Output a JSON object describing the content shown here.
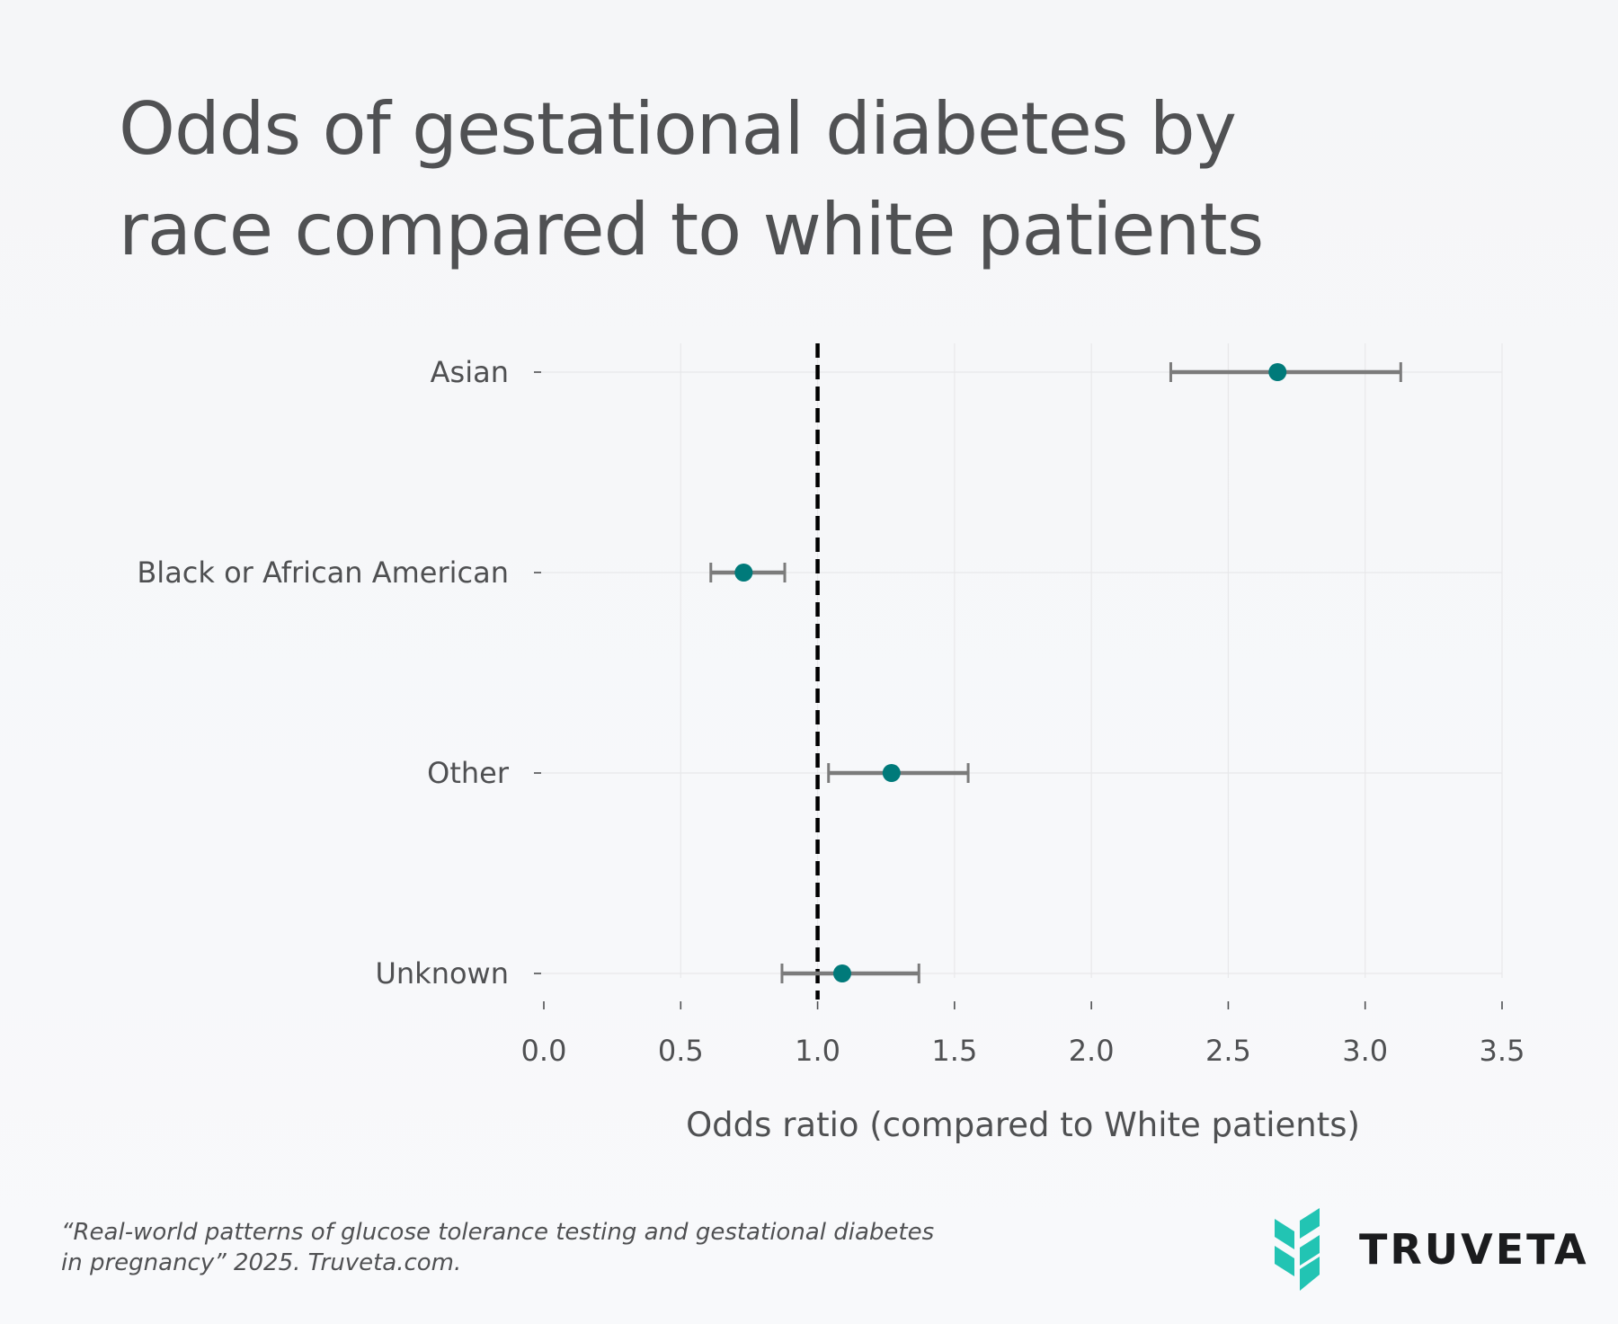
{
  "title_lines": [
    "Odds of gestational diabetes by",
    "race compared to white patients"
  ],
  "chart_data": {
    "type": "forest",
    "categories": [
      "Asian",
      "Black or African American",
      "Other",
      "Unknown"
    ],
    "series": [
      {
        "name": "Odds ratio",
        "estimates": [
          2.68,
          0.73,
          1.27,
          1.09
        ],
        "ci_lower": [
          2.29,
          0.61,
          1.04,
          0.87
        ],
        "ci_upper": [
          3.13,
          0.88,
          1.55,
          1.37
        ]
      }
    ],
    "reference_value": 1.0,
    "xlim": [
      0.0,
      3.5
    ],
    "xticks": [
      "0.0",
      "0.5",
      "1.0",
      "1.5",
      "2.0",
      "2.5",
      "3.0",
      "3.5"
    ],
    "xlabel": "Odds ratio (compared to White patients)",
    "ylabel": "",
    "grid": true,
    "colors": {
      "point": "#007a7a",
      "ci": "#7b7b7b",
      "reference": "#000000",
      "grid": "#e8e8ea",
      "text": "#4f5052"
    }
  },
  "footer": {
    "citation_line1": "“Real-world patterns of glucose tolerance testing and gestational diabetes",
    "citation_line2": "in pregnancy” 2025. Truveta.com."
  },
  "brand": {
    "name": "TRUVETA",
    "logo_icon": "truveta-chevron-icon",
    "logo_color": "#22c4b3"
  }
}
